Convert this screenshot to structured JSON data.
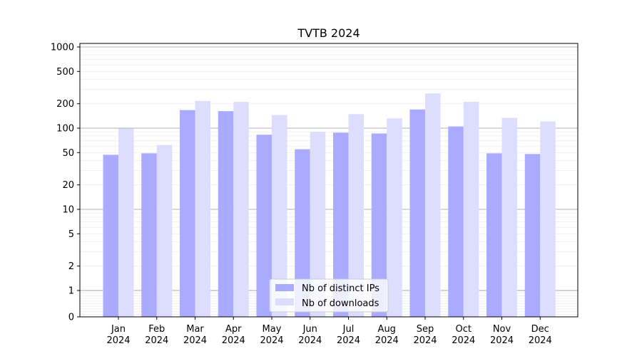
{
  "chart_data": {
    "type": "bar",
    "title": "TVTB 2024",
    "xlabel": "",
    "ylabel": "",
    "yscale": "symlog",
    "ylim": [
      0,
      1200
    ],
    "yticks": [
      0,
      1,
      2,
      5,
      10,
      20,
      50,
      100,
      200,
      500,
      1000
    ],
    "categories": [
      {
        "month": "Jan",
        "year": "2024"
      },
      {
        "month": "Feb",
        "year": "2024"
      },
      {
        "month": "Mar",
        "year": "2024"
      },
      {
        "month": "Apr",
        "year": "2024"
      },
      {
        "month": "May",
        "year": "2024"
      },
      {
        "month": "Jun",
        "year": "2024"
      },
      {
        "month": "Jul",
        "year": "2024"
      },
      {
        "month": "Aug",
        "year": "2024"
      },
      {
        "month": "Sep",
        "year": "2024"
      },
      {
        "month": "Oct",
        "year": "2024"
      },
      {
        "month": "Nov",
        "year": "2024"
      },
      {
        "month": "Dec",
        "year": "2024"
      }
    ],
    "series": [
      {
        "name": "Nb of distinct IPs",
        "color": "#aaaaff",
        "values": [
          47,
          49,
          167,
          162,
          83,
          55,
          88,
          86,
          170,
          105,
          49,
          48
        ]
      },
      {
        "name": "Nb of downloads",
        "color": "#ddddff",
        "values": [
          99,
          62,
          216,
          211,
          145,
          90,
          149,
          132,
          268,
          211,
          134,
          121
        ]
      }
    ],
    "grid": true,
    "legend_position": "bottom-center"
  }
}
